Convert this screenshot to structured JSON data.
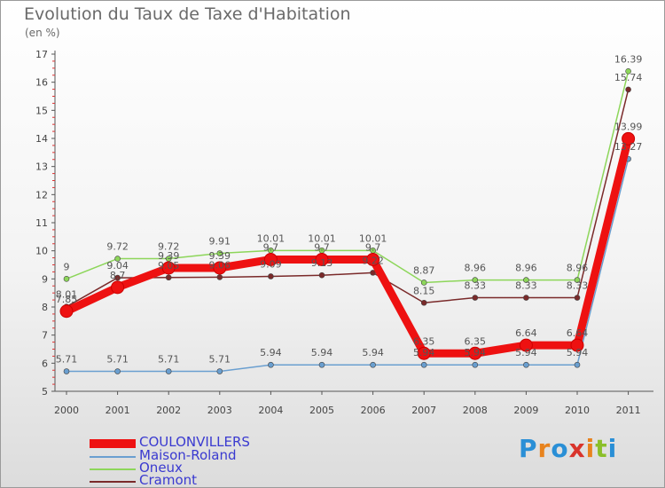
{
  "title": "Evolution du Taux de Taxe d'Habitation",
  "subtitle": "(en %)",
  "brand": {
    "name": "Proxiti",
    "letters": [
      "P",
      "r",
      "o",
      "x",
      "i",
      "t",
      "i"
    ],
    "letter_colors": [
      "#2a8fd6",
      "#e8831e",
      "#2a8fd6",
      "#d9342b",
      "#e8831e",
      "#8bbf2a",
      "#2a8fd6"
    ]
  },
  "chart_data": {
    "type": "line",
    "title": "Evolution du Taux de Taxe d'Habitation",
    "ylabel": "(en %)",
    "xlabel": "",
    "categories": [
      "2000",
      "2001",
      "2002",
      "2003",
      "2004",
      "2005",
      "2006",
      "2007",
      "2008",
      "2009",
      "2010",
      "2011"
    ],
    "ylim": [
      5,
      17
    ],
    "yticks": [
      5,
      6,
      7,
      8,
      9,
      10,
      11,
      12,
      13,
      14,
      15,
      16,
      17
    ],
    "grid": false,
    "series": [
      {
        "name": "COULONVILLERS",
        "color": "#ee1111",
        "width": 9,
        "marker": 7,
        "values": [
          7.85,
          8.7,
          9.39,
          9.39,
          9.69,
          9.69,
          9.69,
          6.35,
          6.35,
          6.64,
          6.64,
          13.99
        ],
        "labels": [
          "7.85",
          "8.7",
          "9.39",
          "9.39",
          "9.7",
          "9.7",
          "9.7",
          "6.35",
          "6.35",
          "6.64",
          "6.64",
          "13.99"
        ]
      },
      {
        "name": "Maison-Roland",
        "color": "#6a9fd0",
        "width": 1.5,
        "marker": 3,
        "values": [
          5.71,
          5.71,
          5.71,
          5.71,
          5.94,
          5.94,
          5.94,
          5.94,
          5.94,
          5.94,
          5.94,
          13.27
        ],
        "labels": [
          "5.71",
          "5.71",
          "5.71",
          "5.71",
          "5.94",
          "5.94",
          "5.94",
          "5.94",
          "5.94",
          "5.94",
          "5.94",
          "13.27"
        ]
      },
      {
        "name": "Oneux",
        "color": "#8dd65a",
        "width": 1.5,
        "marker": 3,
        "values": [
          9.0,
          9.72,
          9.72,
          9.91,
          10.01,
          10.01,
          10.01,
          8.87,
          8.96,
          8.96,
          8.96,
          16.39
        ],
        "labels": [
          "9",
          "9.72",
          "9.72",
          "9.91",
          "10.01",
          "10.01",
          "10.01",
          "8.87",
          "8.96",
          "8.96",
          "8.96",
          "16.39"
        ]
      },
      {
        "name": "Cramont",
        "color": "#7a2a2a",
        "width": 1.5,
        "marker": 3,
        "values": [
          8.01,
          9.04,
          9.05,
          9.06,
          9.09,
          9.13,
          9.22,
          8.15,
          8.33,
          8.33,
          8.33,
          15.74
        ],
        "labels": [
          "8.01",
          "9.04",
          "9.05",
          "9.06",
          "9.09",
          "9.13",
          "9.22",
          "8.15",
          "8.33",
          "8.33",
          "8.33",
          "15.74"
        ]
      }
    ],
    "legend_position": "bottom-left"
  }
}
